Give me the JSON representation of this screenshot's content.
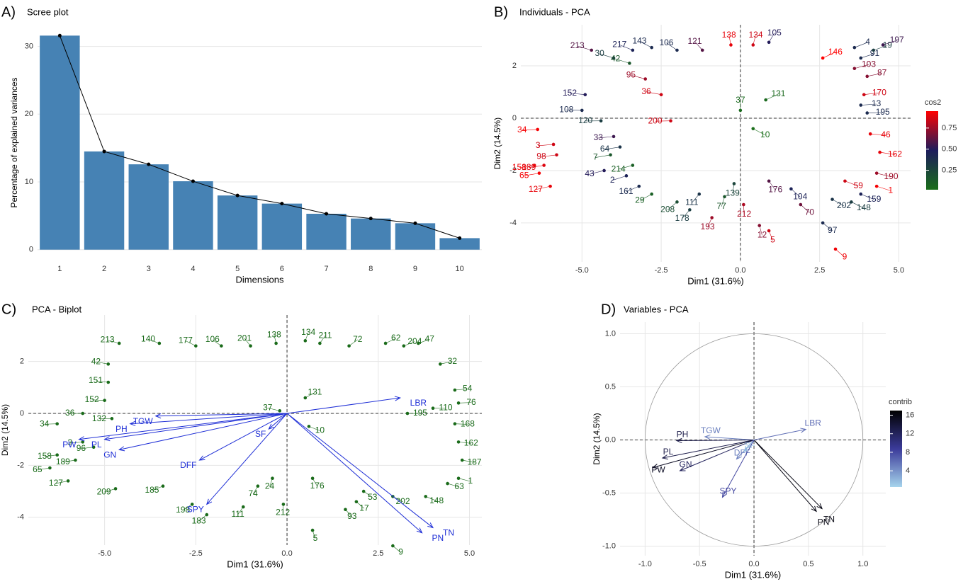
{
  "chart_data": [
    {
      "type": "bar",
      "panel_label": "A)",
      "title": "Scree plot",
      "xlabel": "Dimensions",
      "ylabel": "Percentage of explained variances",
      "categories": [
        "1",
        "2",
        "3",
        "4",
        "5",
        "6",
        "7",
        "8",
        "9",
        "10"
      ],
      "values": [
        31.6,
        14.5,
        12.6,
        10.1,
        8.0,
        6.8,
        5.3,
        4.6,
        3.9,
        1.7
      ],
      "color": "#4682b4",
      "line_color": "#000000",
      "ylim": [
        -1.6,
        33.2
      ],
      "yticks": [
        0,
        10,
        20,
        30
      ],
      "grid": true
    },
    {
      "type": "scatter",
      "panel_label": "B)",
      "title": "Individuals - PCA",
      "xlabel": "Dim1 (31.6%)",
      "ylabel": "Dim2 (14.5%)",
      "xlim": [
        -6.93,
        5.37
      ],
      "ylim": [
        -5.49,
        3.57
      ],
      "xticks": [
        {
          "value": -5,
          "label": "-5.0"
        },
        {
          "value": -2.5,
          "label": "-2.5"
        },
        {
          "value": 0,
          "label": "0.0"
        },
        {
          "value": 2.5,
          "label": "2.5"
        },
        {
          "value": 5,
          "label": "5.0"
        }
      ],
      "yticks": [
        -4,
        -2,
        0,
        2
      ],
      "grid": true,
      "labels": [
        "34",
        "158",
        "65",
        "127",
        "189",
        "98",
        "3",
        "9",
        "5",
        "12",
        "193",
        "212",
        "97",
        "148",
        "159",
        "1",
        "59",
        "190",
        "162",
        "46",
        "195",
        "13",
        "170",
        "87",
        "103",
        "91",
        "19",
        "197",
        "146",
        "4",
        "105",
        "134",
        "138",
        "121",
        "106",
        "143",
        "217",
        "213",
        "30",
        "42",
        "152",
        "108",
        "120",
        "33",
        "64",
        "7",
        "214",
        "43",
        "2",
        "161",
        "29",
        "208",
        "178",
        "111",
        "77",
        "139",
        "176",
        "104",
        "70",
        "202",
        "36",
        "95",
        "200",
        "10",
        "37",
        "131"
      ],
      "x": [
        -6.4,
        -6.5,
        -6.35,
        -6.0,
        -6.2,
        -5.8,
        -5.9,
        3.0,
        0.9,
        0.6,
        -0.9,
        0.1,
        2.6,
        3.5,
        3.8,
        4.3,
        3.3,
        4.3,
        4.4,
        4.1,
        4.0,
        3.8,
        3.9,
        4.0,
        3.6,
        3.8,
        4.2,
        4.5,
        2.6,
        3.6,
        0.9,
        0.4,
        -0.3,
        -1.2,
        -2.0,
        -2.8,
        -3.4,
        -4.7,
        -4.0,
        -3.5,
        -4.9,
        -5.0,
        -4.4,
        -4.0,
        -3.8,
        -4.1,
        -3.4,
        -4.3,
        -3.6,
        -3.2,
        -2.8,
        -2.0,
        -1.6,
        -1.3,
        -0.5,
        -0.2,
        0.9,
        1.6,
        1.9,
        2.9,
        -2.5,
        -3.0,
        -2.2,
        0.4,
        0.0,
        0.8
      ],
      "y": [
        -0.43,
        -1.8,
        -2.1,
        -2.6,
        -1.8,
        -1.4,
        -1.0,
        -5.0,
        -4.3,
        -4.1,
        -3.8,
        -3.3,
        -4.0,
        -3.2,
        -2.9,
        -2.6,
        -2.4,
        -2.1,
        -1.3,
        -0.6,
        0.2,
        0.5,
        0.9,
        1.6,
        1.9,
        2.3,
        2.6,
        2.8,
        2.3,
        2.7,
        2.9,
        2.8,
        2.8,
        2.6,
        2.6,
        2.7,
        2.6,
        2.6,
        2.3,
        2.1,
        0.9,
        0.3,
        -0.1,
        -0.7,
        -1.1,
        -1.4,
        -1.8,
        -2.0,
        -2.2,
        -2.6,
        -2.9,
        -3.2,
        -3.5,
        -2.9,
        -3.0,
        -2.5,
        -2.4,
        -2.7,
        -3.3,
        -3.1,
        0.9,
        1.5,
        -0.1,
        -0.4,
        0.3,
        0.7
      ],
      "cos2": [
        0.93,
        0.92,
        0.93,
        0.9,
        0.88,
        0.85,
        0.85,
        0.92,
        0.85,
        0.7,
        0.75,
        0.78,
        0.4,
        0.3,
        0.45,
        0.93,
        0.85,
        0.75,
        0.9,
        0.9,
        0.4,
        0.4,
        0.85,
        0.7,
        0.7,
        0.4,
        0.3,
        0.55,
        0.95,
        0.4,
        0.5,
        0.85,
        0.9,
        0.6,
        0.4,
        0.4,
        0.45,
        0.6,
        0.3,
        0.15,
        0.5,
        0.4,
        0.3,
        0.55,
        0.35,
        0.15,
        0.1,
        0.5,
        0.45,
        0.4,
        0.1,
        0.2,
        0.3,
        0.35,
        0.15,
        0.25,
        0.6,
        0.45,
        0.65,
        0.35,
        0.85,
        0.75,
        0.85,
        0.02,
        0.05,
        0.05
      ],
      "color_legend": {
        "title": "cos2",
        "range": [
          0.02,
          0.95
        ],
        "ticks": [
          0.25,
          {
            "value": 0.5,
            "label": "0.50"
          },
          0.75
        ],
        "colors": [
          "#1a6e1a",
          "#1c1c5c",
          "#ff0000"
        ]
      }
    },
    {
      "type": "biplot",
      "panel_label": "C)",
      "title": "PCA - Biplot",
      "xlabel": "Dim1 (31.6%)",
      "ylabel": "Dim2 (14.5%)",
      "xlim": [
        -7.09,
        5.34
      ],
      "ylim": [
        -5.07,
        3.79
      ],
      "xticks": [
        {
          "value": -5,
          "label": "-5.0"
        },
        {
          "value": -2.5,
          "label": "-2.5"
        },
        {
          "value": 0,
          "label": "0.0"
        },
        {
          "value": 2.5,
          "label": "2.5"
        },
        {
          "value": 5,
          "label": "5.0"
        }
      ],
      "yticks": [
        -4,
        -2,
        0,
        2
      ],
      "grid": true,
      "color": "#1a6b1a",
      "labels": [
        "34",
        "158",
        "65",
        "127",
        "189",
        "3",
        "96",
        "9",
        "5",
        "212",
        "183",
        "111",
        "93",
        "17",
        "148",
        "63",
        "1",
        "187",
        "162",
        "168",
        "76",
        "54",
        "32",
        "47",
        "204",
        "62",
        "72",
        "211",
        "134",
        "138",
        "201",
        "106",
        "177",
        "140",
        "213",
        "42",
        "151",
        "152",
        "36",
        "132",
        "209",
        "185",
        "198",
        "74",
        "24",
        "176",
        "53",
        "202",
        "110",
        "195",
        "10",
        "37",
        "131"
      ],
      "x": [
        -6.3,
        -6.3,
        -6.5,
        -6.0,
        -5.8,
        -5.6,
        -5.3,
        2.9,
        0.7,
        -0.1,
        -2.2,
        -1.2,
        1.6,
        1.9,
        3.8,
        4.4,
        4.7,
        4.8,
        4.7,
        4.6,
        4.7,
        4.6,
        4.2,
        3.6,
        3.2,
        2.7,
        1.7,
        0.9,
        0.5,
        -0.3,
        -1.0,
        -1.8,
        -2.5,
        -3.5,
        -4.6,
        -4.9,
        -4.9,
        -5.0,
        -5.6,
        -4.8,
        -4.7,
        -3.4,
        -2.6,
        -0.8,
        -0.4,
        0.7,
        2.1,
        2.9,
        4.0,
        3.3,
        0.6,
        -0.2,
        0.5
      ],
      "y": [
        -0.4,
        -1.6,
        -2.1,
        -2.6,
        -1.8,
        -1.1,
        -1.3,
        -5.1,
        -4.5,
        -3.5,
        -3.9,
        -3.6,
        -3.7,
        -3.4,
        -3.2,
        -2.7,
        -2.5,
        -1.8,
        -1.1,
        -0.4,
        0.4,
        0.9,
        1.9,
        2.7,
        2.6,
        2.7,
        2.6,
        2.7,
        2.8,
        2.7,
        2.6,
        2.6,
        2.6,
        2.7,
        2.7,
        1.9,
        1.2,
        0.5,
        0.0,
        -0.2,
        -2.9,
        -2.8,
        -3.5,
        -2.8,
        -2.5,
        -2.5,
        -3.0,
        -3.2,
        0.2,
        0.0,
        -0.5,
        0.1,
        0.6
      ],
      "arrows": {
        "color": "#1f2fd6",
        "names": [
          "PN",
          "TN",
          "LBR",
          "TGW",
          "PH",
          "PL",
          "PW",
          "GN",
          "DFF",
          "SF",
          "SPY"
        ],
        "x": [
          3.7,
          4.0,
          3.1,
          -3.6,
          -4.3,
          -5.0,
          -5.7,
          -4.6,
          -2.4,
          -0.5,
          -2.2
        ],
        "y": [
          -4.6,
          -4.4,
          0.6,
          -0.1,
          -0.4,
          -1.0,
          -1.0,
          -1.4,
          -1.8,
          -0.6,
          -3.5
        ]
      }
    },
    {
      "type": "variables",
      "panel_label": "D)",
      "title": "Variables - PCA",
      "xlabel": "Dim1 (31.6%)",
      "ylabel": "Dim2 (14.5%)",
      "xlim": [
        -1.23,
        1.21
      ],
      "ylim": [
        -1.09,
        1.11
      ],
      "xticks": [
        {
          "value": -1,
          "label": "-1.0"
        },
        {
          "value": -0.5,
          "label": "-0.5"
        },
        {
          "value": 0,
          "label": "0.0"
        },
        {
          "value": 0.5,
          "label": "0.5"
        },
        {
          "value": 1,
          "label": "1.0"
        }
      ],
      "yticks": [
        {
          "value": -1,
          "label": "-1.0"
        },
        {
          "value": -0.5,
          "label": "-0.5"
        },
        {
          "value": 0,
          "label": "0.0"
        },
        {
          "value": 0.5,
          "label": "0.5"
        },
        {
          "value": 1,
          "label": "1.0"
        }
      ],
      "grid": true,
      "names": [
        "TN",
        "PN",
        "LBR",
        "TGW",
        "PH",
        "PL",
        "PW",
        "GN",
        "DFF",
        "SF",
        "SPY"
      ],
      "x": [
        0.625,
        0.573,
        0.476,
        -0.45,
        -0.71,
        -0.84,
        -0.93,
        -0.68,
        -0.16,
        -0.09,
        -0.29
      ],
      "y": [
        -0.647,
        -0.673,
        0.1,
        0.03,
        -0.007,
        -0.17,
        -0.26,
        -0.29,
        -0.18,
        -0.11,
        -0.54
      ],
      "contrib": [
        16,
        16,
        6,
        5,
        13,
        13,
        15,
        12,
        5,
        1.5,
        8
      ],
      "color_legend": {
        "title": "contrib",
        "range": [
          0.5,
          17
        ],
        "ticks": [
          4,
          8,
          12,
          16
        ],
        "colors": [
          "#a6d4ec",
          "#3b3b9a",
          "#000000"
        ]
      }
    }
  ]
}
